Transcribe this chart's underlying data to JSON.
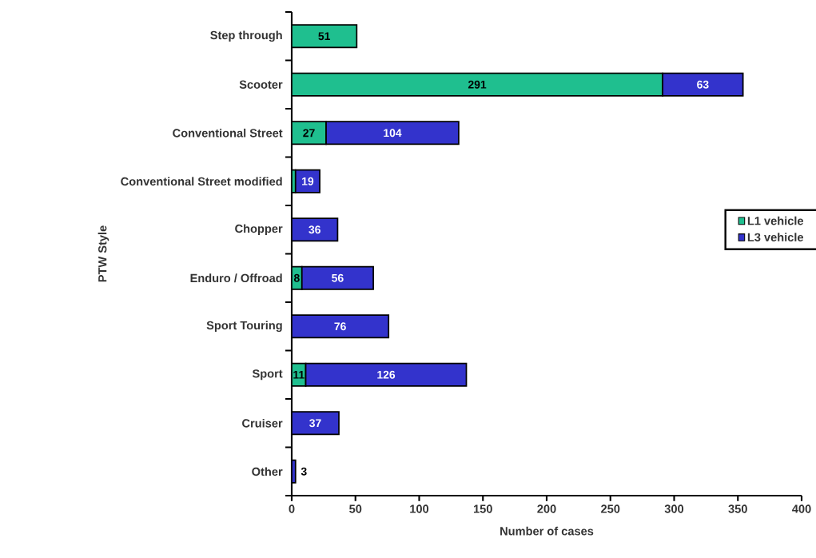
{
  "chart_data": {
    "type": "bar",
    "orientation": "horizontal",
    "stacked": true,
    "categories": [
      "Step through",
      "Scooter",
      "Conventional Street",
      "Conventional Street modified",
      "Chopper",
      "Enduro / Offroad",
      "Sport Touring",
      "Sport",
      "Cruiser",
      "Other"
    ],
    "series": [
      {
        "name": "L1 vehicle",
        "color": "#1fbf8f",
        "values": [
          51,
          291,
          27,
          3,
          null,
          8,
          null,
          11,
          null,
          null
        ],
        "value_labels": [
          "51",
          "291",
          "27",
          null,
          null,
          "8",
          null,
          "11",
          null,
          null
        ]
      },
      {
        "name": "L3 vehicle",
        "color": "#3333cc",
        "values": [
          null,
          63,
          104,
          19,
          36,
          56,
          76,
          126,
          37,
          3
        ],
        "value_labels": [
          null,
          "63",
          "104",
          "19",
          "36",
          "56",
          "76",
          "126",
          "37",
          "3"
        ]
      }
    ],
    "xlim": [
      0,
      400
    ],
    "xticks": [
      0,
      50,
      100,
      150,
      200,
      250,
      300,
      350,
      400
    ],
    "xlabel": "Number of cases",
    "ylabel": "PTW Style",
    "legend": "right",
    "grid": false
  }
}
